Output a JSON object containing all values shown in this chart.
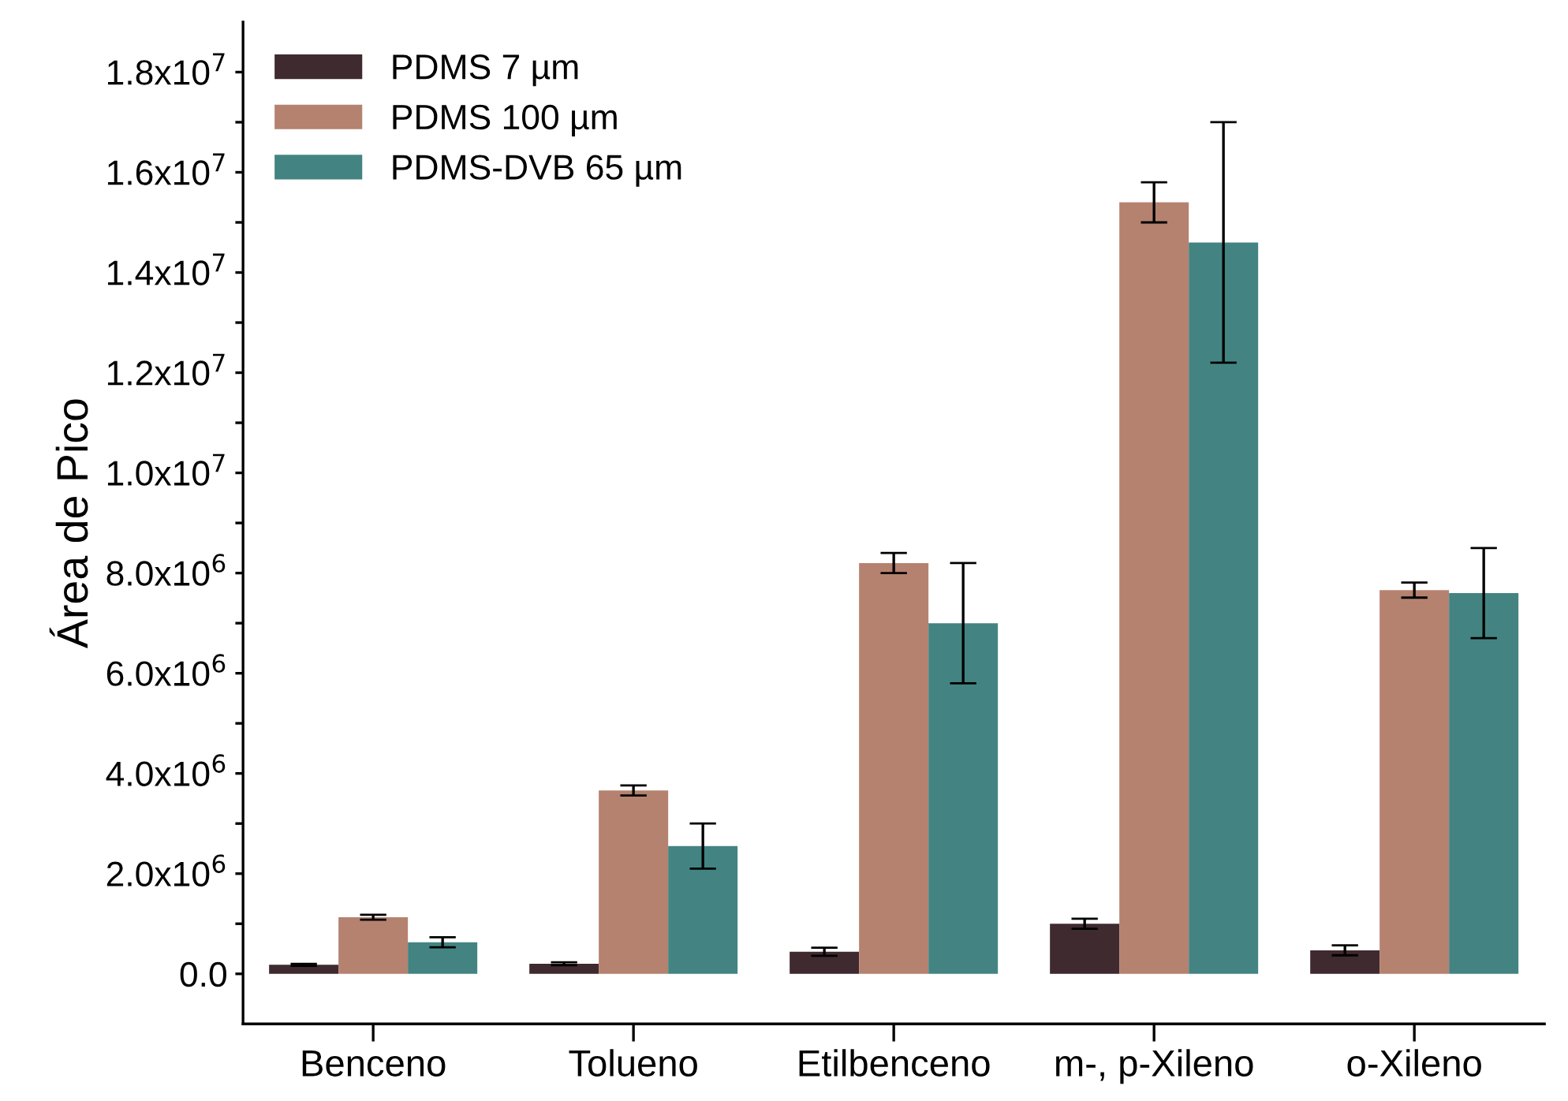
{
  "chart_data": {
    "type": "bar",
    "ylabel": "Área de Pico",
    "categories": [
      "Benceno",
      "Tolueno",
      "Etilbenceno",
      "m-, p-Xileno",
      "o-Xileno"
    ],
    "series": [
      {
        "name": "PDMS 7 µm",
        "color": "#3f2a30",
        "values": [
          180000,
          200000,
          440000,
          1000000,
          470000
        ],
        "errors": [
          20000,
          30000,
          80000,
          100000,
          100000
        ]
      },
      {
        "name": "PDMS 100 µm",
        "color": "#b58270",
        "values": [
          1130000,
          3660000,
          8200000,
          15400000,
          7660000
        ],
        "errors": [
          50000,
          100000,
          200000,
          400000,
          150000
        ]
      },
      {
        "name": "PDMS-DVB 65 µm",
        "color": "#438482",
        "values": [
          630000,
          2550000,
          7000000,
          14600000,
          7600000
        ],
        "errors": [
          100000,
          450000,
          1200000,
          2400000,
          900000
        ]
      }
    ],
    "ylim": [
      -1000000,
      19000000
    ],
    "yticks": [
      {
        "value": 0,
        "label": "0.0"
      },
      {
        "value": 2000000,
        "label": "2.0x10$^{6}$"
      },
      {
        "value": 4000000,
        "label": "4.0x10$^{6}$"
      },
      {
        "value": 6000000,
        "label": "6.0x10$^{6}$"
      },
      {
        "value": 8000000,
        "label": "8.0x10$^{6}$"
      },
      {
        "value": 10000000,
        "label": "1.0x10$^{7}$"
      },
      {
        "value": 12000000,
        "label": "1.2x10$^{7}$"
      },
      {
        "value": 14000000,
        "label": "1.4x10$^{7}$"
      },
      {
        "value": 16000000,
        "label": "1.6x10$^{7}$"
      },
      {
        "value": 18000000,
        "label": "1.8x10$^{7}$"
      },
      {
        "value": 1000000,
        "label": null
      },
      {
        "value": 3000000,
        "label": null
      },
      {
        "value": 5000000,
        "label": null
      },
      {
        "value": 7000000,
        "label": null
      },
      {
        "value": 9000000,
        "label": null
      },
      {
        "value": 11000000,
        "label": null
      },
      {
        "value": 13000000,
        "label": null
      },
      {
        "value": 15000000,
        "label": null
      },
      {
        "value": 17000000,
        "label": null
      }
    ],
    "grid": false,
    "legend": "top left"
  }
}
